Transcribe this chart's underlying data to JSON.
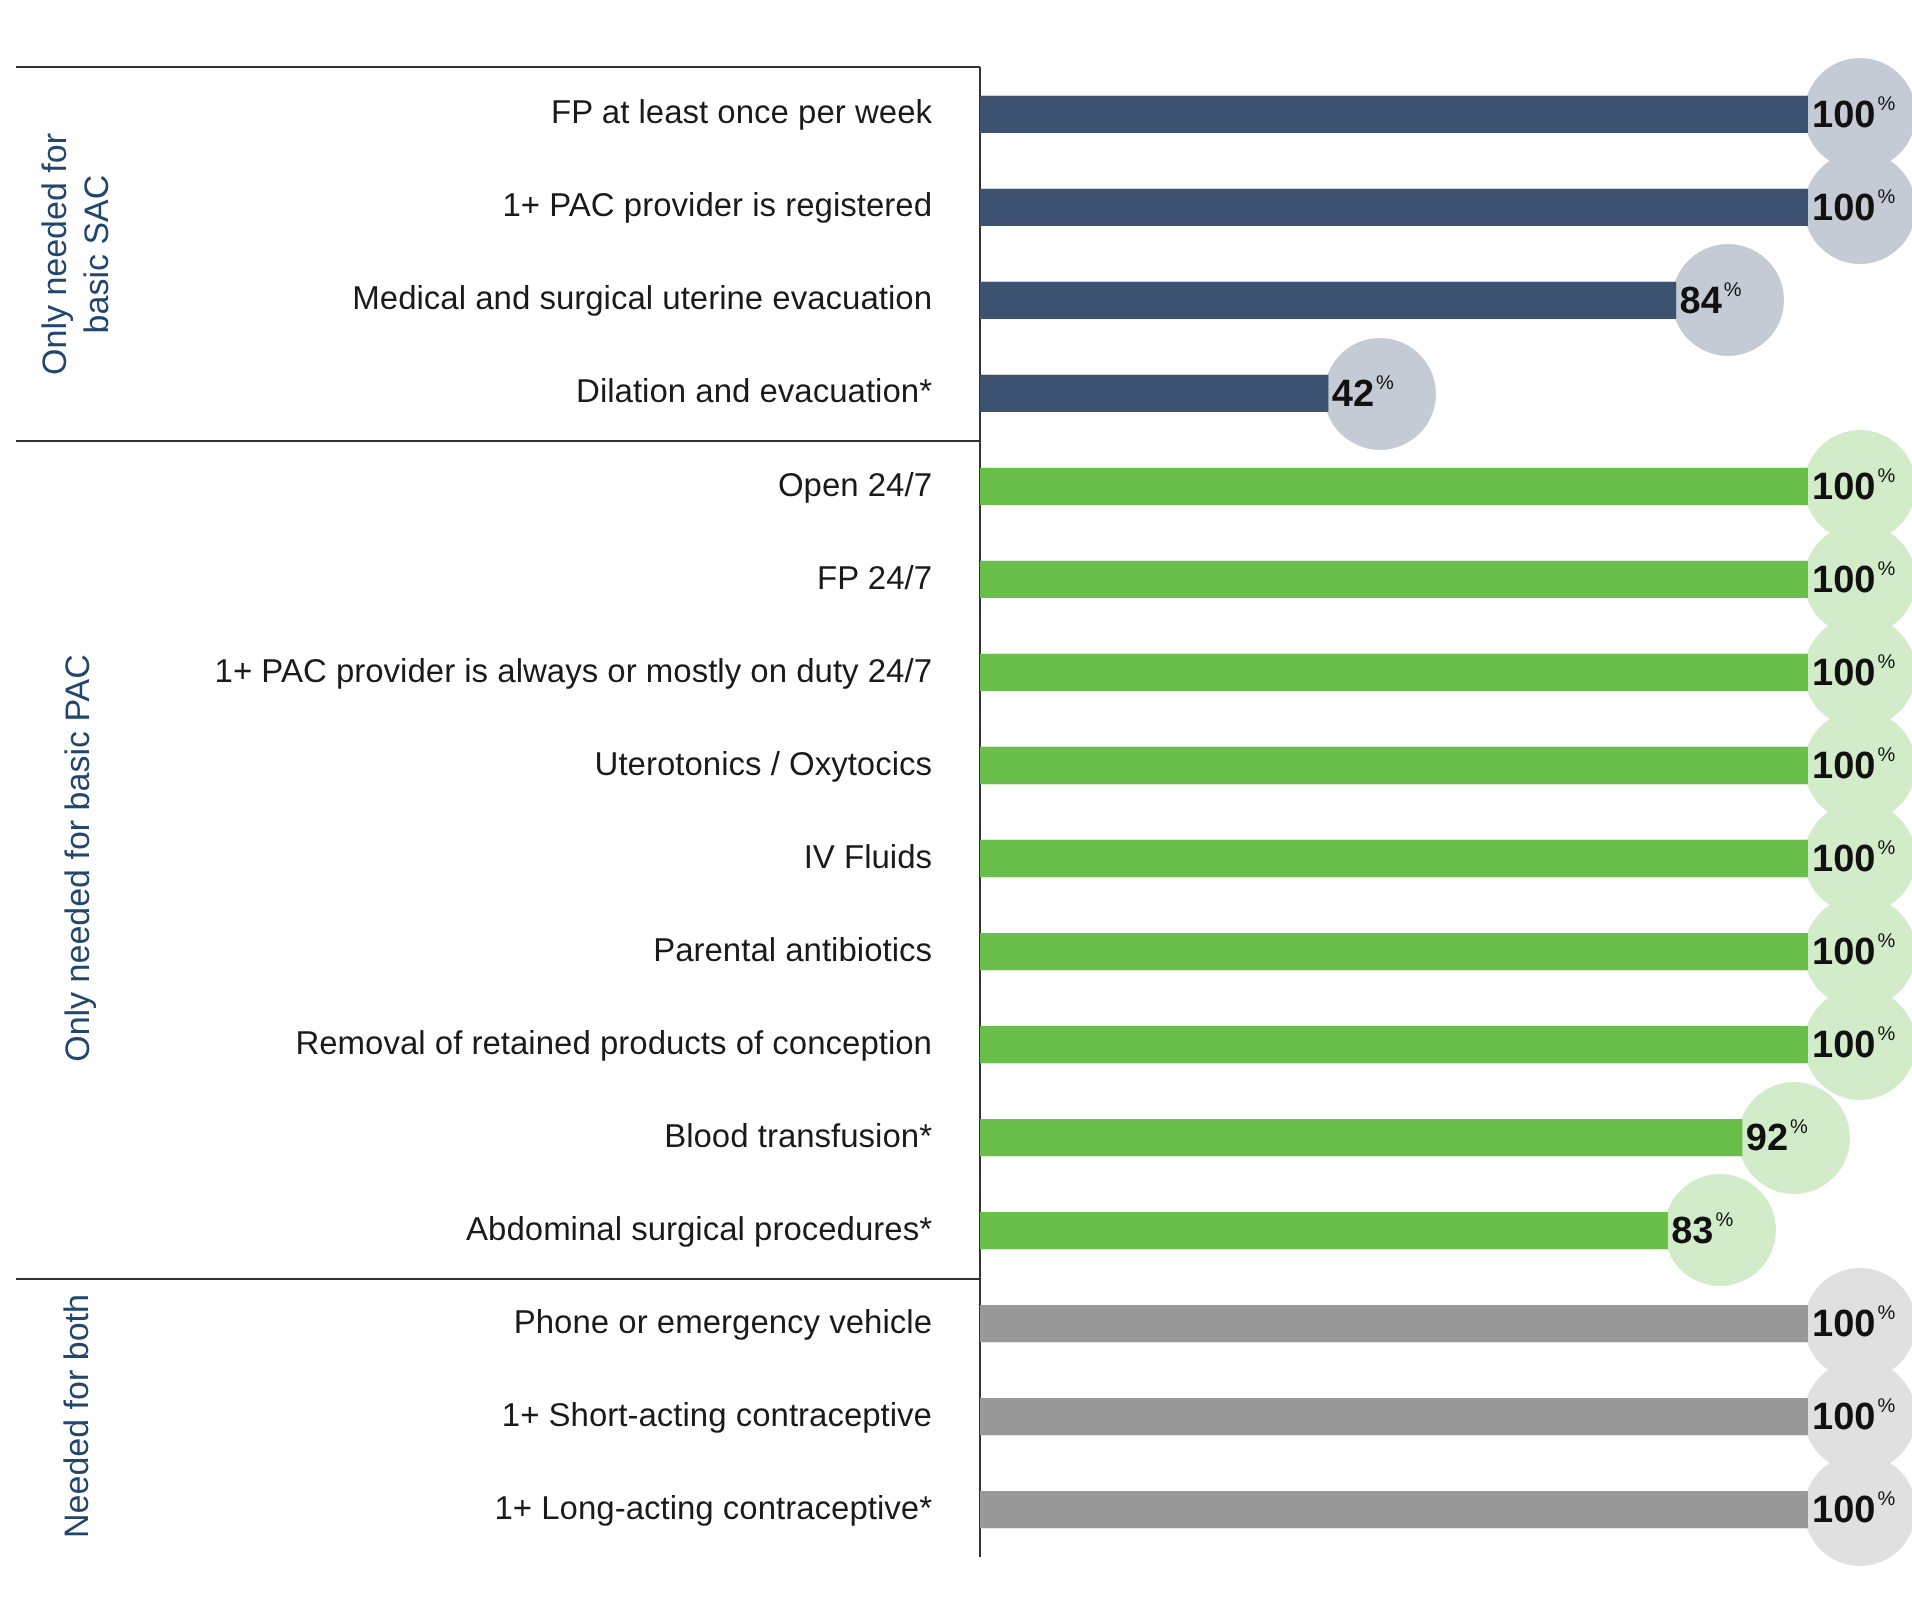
{
  "chart_data": {
    "type": "bar",
    "orientation": "horizontal",
    "categories": [
      "FP at least once per week",
      "1+ PAC provider is registered",
      "Medical and surgical uterine evacuation",
      "Dilation and evacuation*",
      "Open 24/7",
      "FP 24/7",
      "1+ PAC provider is always or mostly on duty 24/7",
      "Uterotonics / Oxytocics",
      "IV Fluids",
      "Parental antibiotics",
      "Removal of retained products of conception",
      "Blood transfusion*",
      "Abdominal surgical procedures*",
      "Phone or emergency vehicle",
      "1+ Short-acting contraceptive",
      "1+ Long-acting contraceptive*"
    ],
    "values": [
      100,
      100,
      84,
      42,
      100,
      100,
      100,
      100,
      100,
      100,
      100,
      92,
      83,
      100,
      100,
      100
    ],
    "colors": [
      "#3d5170",
      "#3d5170",
      "#3d5170",
      "#3d5170",
      "#6abf4b",
      "#6abf4b",
      "#6abf4b",
      "#6abf4b",
      "#6abf4b",
      "#6abf4b",
      "#6abf4b",
      "#6abf4b",
      "#6abf4b",
      "#999999",
      "#999999",
      "#999999"
    ],
    "value_labels": [
      "100$^{%}$",
      "100$^{%}$",
      "84$^{%}$",
      "42$^{%}$",
      "100$^{%}$",
      "100$^{%}$",
      "100$^{%}$",
      "100$^{%}$",
      "100$^{%}$",
      "100$^{%}$",
      "100$^{%}$",
      "92$^{%}$",
      "83$^{%}$",
      "100$^{%}$",
      "100$^{%}$",
      "100$^{%}$"
    ],
    "tick_labels": "y",
    "annotations": [
      "Only needed for basic SAC",
      "Only needed for basic PAC",
      "Needed for both"
    ]
  }
}
